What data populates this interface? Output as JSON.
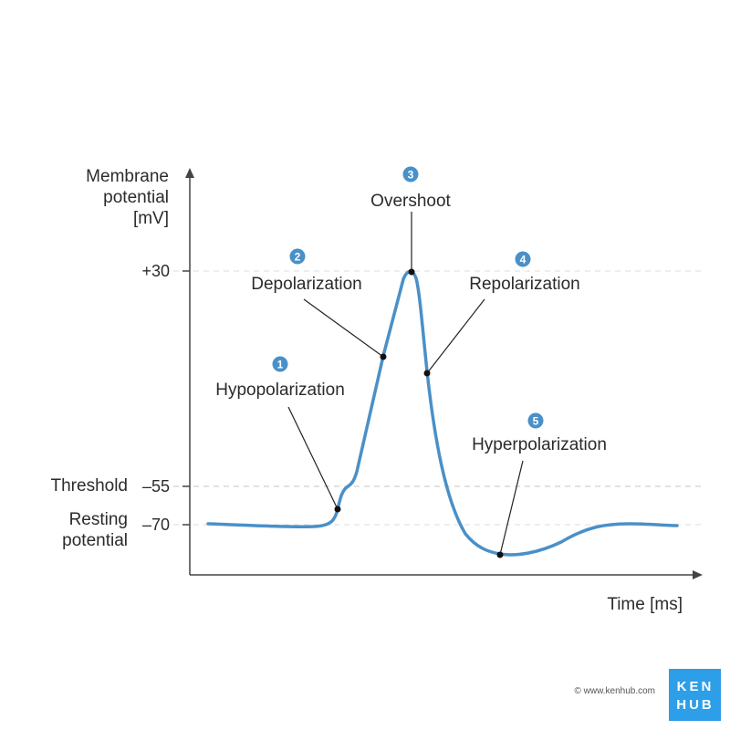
{
  "axes": {
    "y_label_lines": [
      "Membrane",
      "potential",
      "[mV]"
    ],
    "x_label": "Time [ms]",
    "y_ticks": [
      {
        "value": "+30",
        "name": ""
      },
      {
        "value": "–55",
        "name": "Threshold"
      },
      {
        "value": "–70",
        "name": "Resting potential"
      }
    ]
  },
  "phases": [
    {
      "number": "1",
      "label": "Hypopolarization"
    },
    {
      "number": "2",
      "label": "Depolarization"
    },
    {
      "number": "3",
      "label": "Overshoot"
    },
    {
      "number": "4",
      "label": "Repolarization"
    },
    {
      "number": "5",
      "label": "Hyperpolarization"
    }
  ],
  "resting_label_lines": [
    "Resting",
    "potential"
  ],
  "footer": {
    "copyright": "© www.kenhub.com",
    "logo_top": "KEN",
    "logo_bottom": "HUB"
  },
  "colors": {
    "curve": "#4a90c8",
    "badge": "#4a90c8",
    "axis": "#444444",
    "dashed": "#cfcfcf",
    "logo_bg": "#2d9ee8"
  }
}
